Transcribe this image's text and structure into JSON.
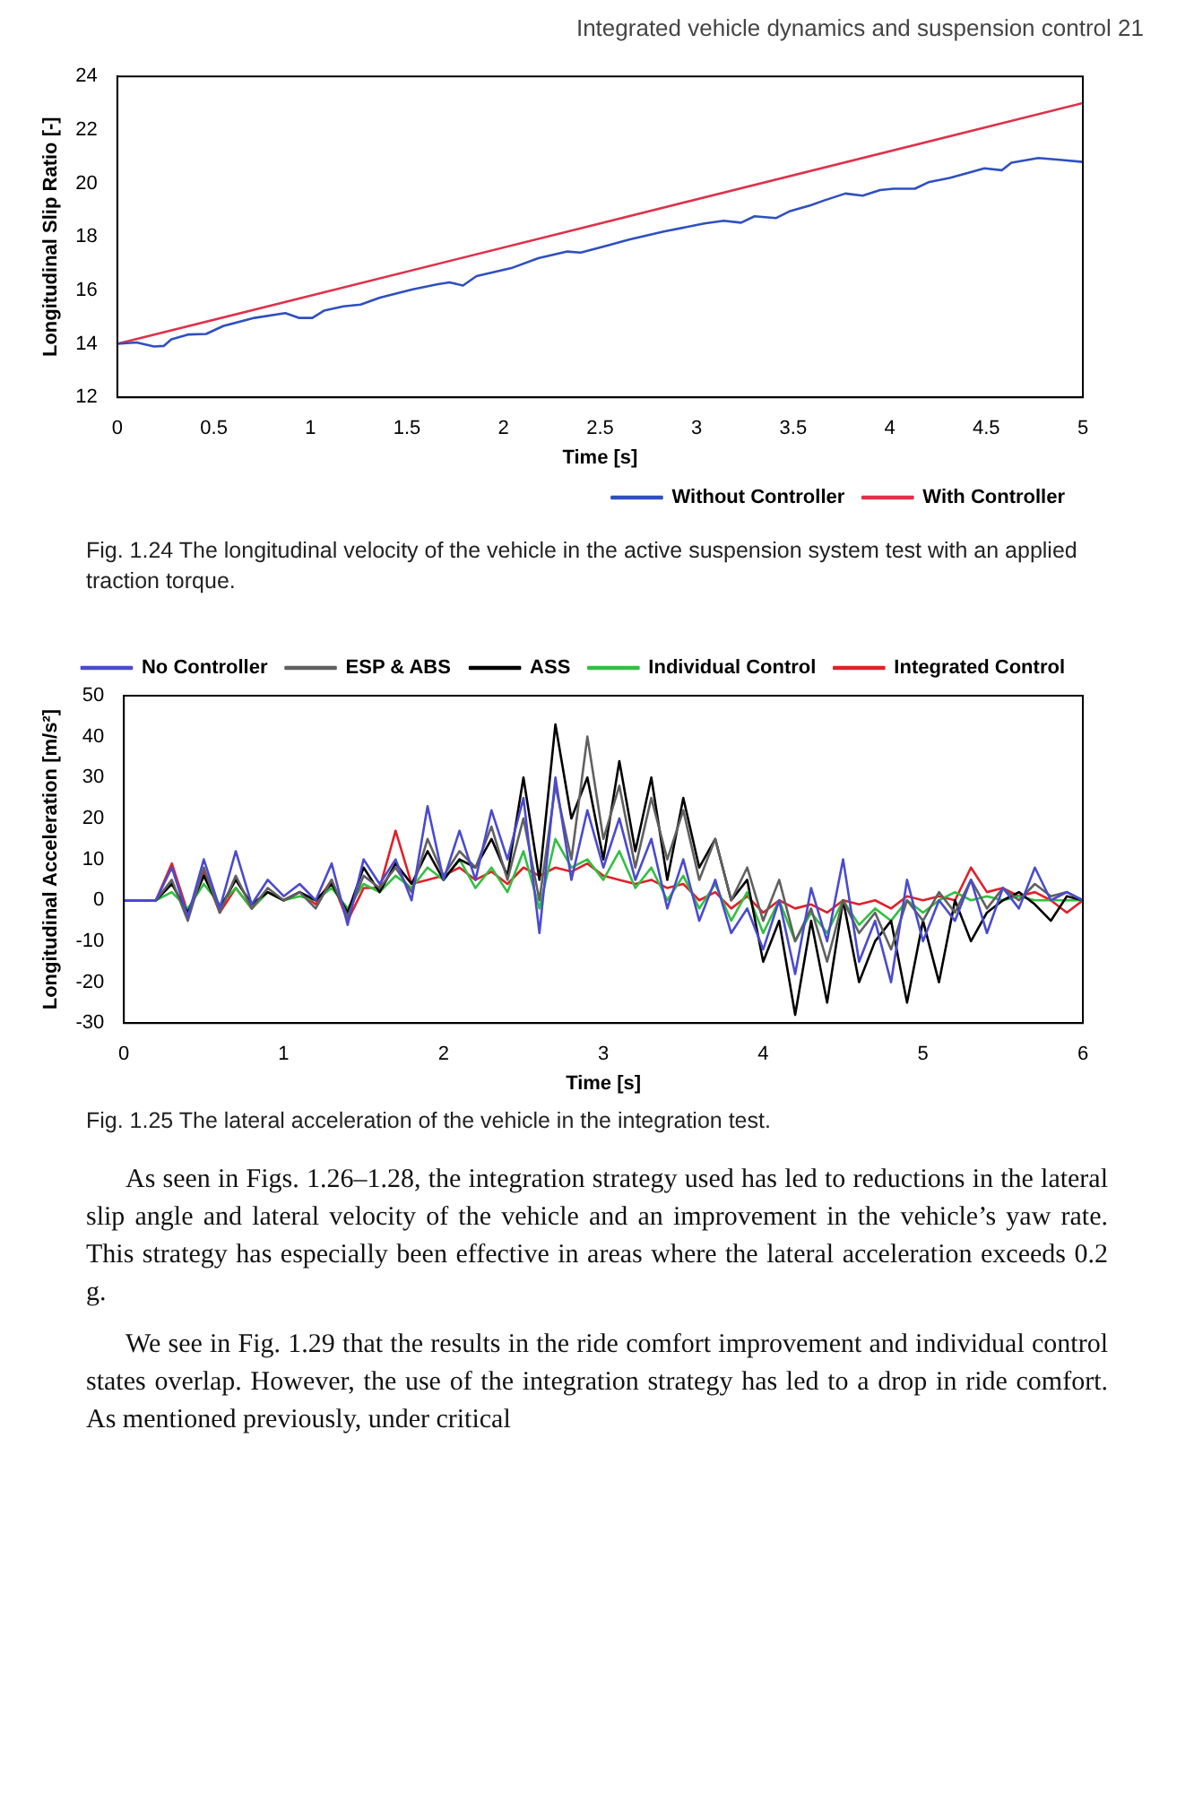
{
  "chart_data": [
    {
      "type": "line",
      "xlabel": "Time [s]",
      "ylabel": "Longitudinal Slip Ratio [-]",
      "xlim": [
        0,
        5
      ],
      "xticks": [
        0,
        0.5,
        1,
        1.5,
        2,
        2.5,
        3,
        3.5,
        4,
        4.5,
        5
      ],
      "ylim": [
        12,
        24
      ],
      "yticks": [
        12,
        14,
        16,
        18,
        20,
        22,
        24
      ],
      "grid": false,
      "legend": "bottom right",
      "marker": "none",
      "line_style": "solid",
      "annotations": [
        "Integrated vehicle dynamics and suspension control   21",
        "Fig. 1.24 The longitudinal velocity of the vehicle in the active suspension system test with an applied traction torque."
      ],
      "series": [
        {
          "name": "Without Controller",
          "color": "#2f4fc0",
          "x": [
            0,
            0.1,
            0.19,
            0.24,
            0.28,
            0.37,
            0.46,
            0.55,
            0.71,
            0.87,
            0.94,
            1.01,
            1.07,
            1.17,
            1.26,
            1.36,
            1.53,
            1.66,
            1.72,
            1.79,
            1.86,
            2.04,
            2.18,
            2.33,
            2.4,
            2.54,
            2.65,
            2.83,
            3.04,
            3.14,
            3.23,
            3.3,
            3.41,
            3.48,
            3.59,
            3.66,
            3.77,
            3.86,
            3.95,
            4.02,
            4.13,
            4.2,
            4.31,
            4.42,
            4.49,
            4.58,
            4.63,
            4.77,
            4.88,
            5
          ],
          "values": [
            14.0,
            14.05,
            13.9,
            13.92,
            14.17,
            14.35,
            14.37,
            14.67,
            14.97,
            15.15,
            14.97,
            14.97,
            15.24,
            15.4,
            15.47,
            15.73,
            16.04,
            16.23,
            16.3,
            16.18,
            16.53,
            16.83,
            17.2,
            17.45,
            17.41,
            17.68,
            17.9,
            18.2,
            18.5,
            18.6,
            18.53,
            18.77,
            18.7,
            18.95,
            19.18,
            19.36,
            19.62,
            19.54,
            19.75,
            19.8,
            19.8,
            20.04,
            20.2,
            20.42,
            20.56,
            20.49,
            20.77,
            20.95,
            20.88,
            20.8
          ]
        },
        {
          "name": "With Controller",
          "color": "#e0304a",
          "x": [
            0,
            5
          ],
          "values": [
            14,
            23
          ]
        }
      ]
    },
    {
      "type": "line",
      "xlabel": "Time [s]",
      "ylabel": "Longitudinal Acceleration [m/s²]",
      "xlim": [
        0,
        6
      ],
      "xticks": [
        0,
        1,
        2,
        3,
        4,
        5,
        6
      ],
      "ylim": [
        -30,
        50
      ],
      "yticks": [
        -30,
        -20,
        -10,
        0,
        10,
        20,
        30,
        40,
        50
      ],
      "grid": false,
      "legend": "top right",
      "marker": "none",
      "line_style": "solid",
      "annotations": [
        "Fig. 1.25 The lateral acceleration of the vehicle in the integration test.",
        "As seen in Figs. 1.26–1.28, the integration strategy used has led to reductions in the lateral slip angle and lateral velocity of the vehicle and an improvement in the vehicle’s yaw rate. This strategy has especially been effective in areas where the lateral acceleration exceeds 0.2 g.",
        "We see in Fig. 1.29 that the results in the ride comfort improvement and individual control states overlap. However, the use of the integration strategy has led to a drop in ride comfort. As mentioned previously, under critical"
      ],
      "x": [
        0,
        0.1,
        0.2,
        0.3,
        0.4,
        0.5,
        0.6,
        0.7,
        0.8,
        0.9,
        1,
        1.1,
        1.2,
        1.3,
        1.4,
        1.5,
        1.6,
        1.7,
        1.8,
        1.9,
        2,
        2.1,
        2.2,
        2.3,
        2.4,
        2.5,
        2.6,
        2.7,
        2.8,
        2.9,
        3,
        3.1,
        3.2,
        3.3,
        3.4,
        3.5,
        3.6,
        3.7,
        3.8,
        3.9,
        4,
        4.1,
        4.2,
        4.3,
        4.4,
        4.5,
        4.6,
        4.7,
        4.8,
        4.9,
        5,
        5.1,
        5.2,
        5.3,
        5.4,
        5.5,
        5.6,
        5.7,
        5.8,
        5.9,
        6
      ],
      "series": [
        {
          "name": "No Controller",
          "color": "#4a4ad0",
          "values": [
            0,
            0,
            0,
            8,
            -4,
            10,
            -2,
            12,
            -1,
            5,
            1,
            4,
            0,
            9,
            -6,
            10,
            4,
            10,
            0,
            23,
            5,
            17,
            5,
            22,
            10,
            25,
            -8,
            30,
            5,
            22,
            8,
            20,
            5,
            15,
            -2,
            10,
            -5,
            5,
            -8,
            -2,
            -12,
            0,
            -18,
            3,
            -10,
            10,
            -15,
            -5,
            -20,
            5,
            -10,
            0,
            -5,
            5,
            -8,
            3,
            -2,
            8,
            0,
            2,
            0
          ]
        },
        {
          "name": "ESP & ABS",
          "color": "#606060",
          "values": [
            0,
            0,
            0,
            5,
            -5,
            8,
            -3,
            6,
            -2,
            3,
            0,
            2,
            -2,
            5,
            -4,
            6,
            3,
            8,
            2,
            15,
            6,
            12,
            8,
            18,
            5,
            20,
            0,
            28,
            10,
            40,
            15,
            28,
            8,
            25,
            10,
            22,
            5,
            15,
            0,
            8,
            -5,
            5,
            -10,
            -2,
            -15,
            0,
            -8,
            -3,
            -12,
            0,
            -5,
            2,
            -3,
            5,
            -2,
            3,
            0,
            4,
            1,
            2,
            0
          ]
        },
        {
          "name": "ASS",
          "color": "#000000",
          "values": [
            0,
            0,
            0,
            4,
            -3,
            6,
            -2,
            5,
            -1,
            2,
            0,
            2,
            0,
            4,
            -3,
            8,
            2,
            9,
            4,
            12,
            5,
            10,
            8,
            15,
            6,
            30,
            5,
            43,
            20,
            30,
            10,
            34,
            12,
            30,
            5,
            25,
            8,
            15,
            0,
            5,
            -15,
            -5,
            -28,
            -5,
            -25,
            0,
            -20,
            -10,
            -5,
            -25,
            -5,
            -20,
            0,
            -10,
            -3,
            0,
            2,
            -1,
            -5,
            1,
            0
          ]
        },
        {
          "name": "Individual Control",
          "color": "#30c040",
          "values": [
            0,
            0,
            0,
            2,
            -2,
            4,
            -1,
            3,
            -2,
            2,
            0,
            1,
            0,
            3,
            -2,
            4,
            2,
            6,
            3,
            8,
            5,
            10,
            3,
            8,
            2,
            12,
            -2,
            15,
            8,
            10,
            5,
            12,
            3,
            8,
            0,
            6,
            -2,
            4,
            -5,
            2,
            -8,
            0,
            -10,
            -3,
            -8,
            0,
            -6,
            -2,
            -5,
            0,
            -3,
            0,
            2,
            0,
            1,
            0,
            1,
            0,
            0,
            0,
            0
          ]
        },
        {
          "name": "Integrated Control",
          "color": "#e0202a",
          "values": [
            0,
            0,
            0,
            9,
            -3,
            7,
            -3,
            3,
            -2,
            2,
            0,
            2,
            -1,
            5,
            -5,
            3,
            3,
            17,
            4,
            5,
            6,
            8,
            5,
            7,
            4,
            8,
            6,
            8,
            7,
            9,
            6,
            5,
            4,
            5,
            3,
            4,
            0,
            2,
            -2,
            1,
            -3,
            0,
            -2,
            -1,
            -3,
            0,
            -1,
            0,
            -2,
            1,
            0,
            1,
            0,
            8,
            2,
            3,
            1,
            2,
            0,
            -3,
            0
          ]
        }
      ]
    }
  ]
}
